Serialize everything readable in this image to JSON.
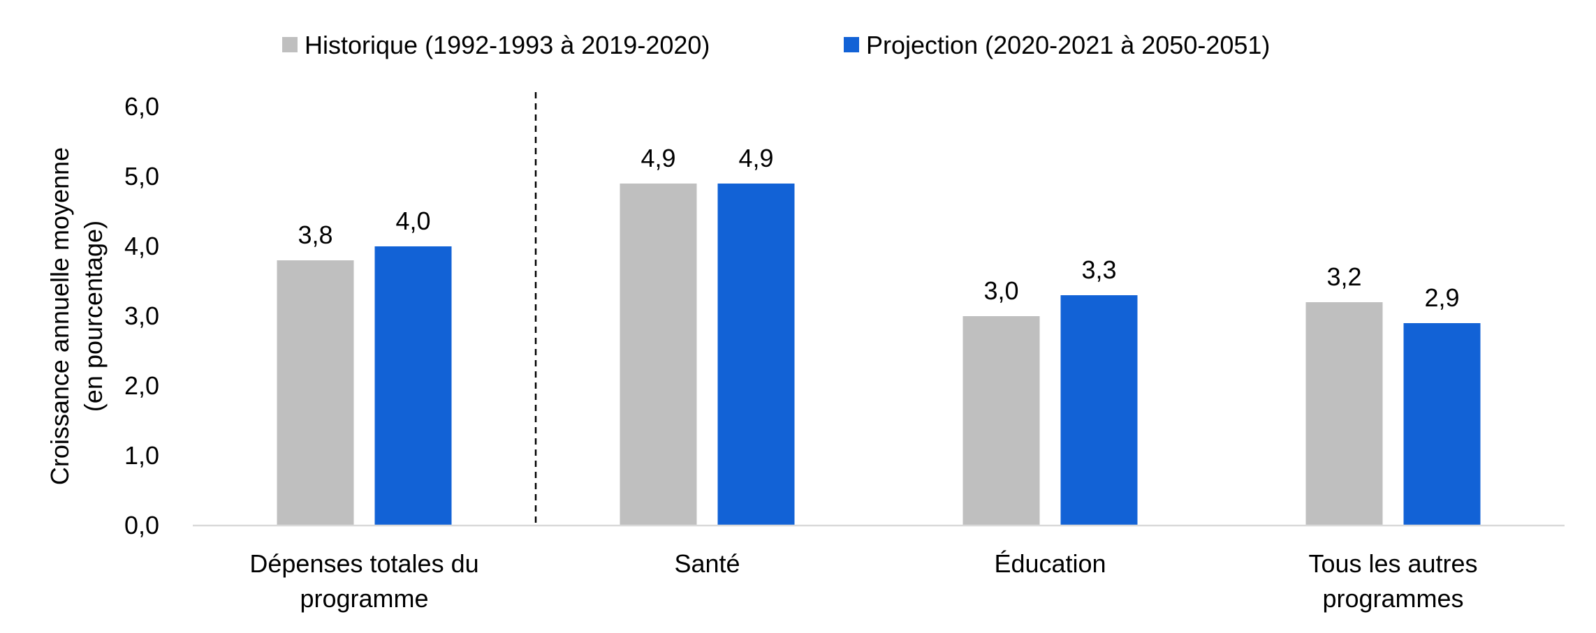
{
  "chart_data": {
    "type": "bar",
    "title": "",
    "xlabel": "",
    "ylabel_lines": [
      "Croissance annuelle moyenne",
      "(en pourcentage)"
    ],
    "ylim": [
      0,
      6
    ],
    "yticks": [
      0,
      1,
      2,
      3,
      4,
      5,
      6
    ],
    "ytick_labels": [
      "0,0",
      "1,0",
      "2,0",
      "3,0",
      "4,0",
      "5,0",
      "6,0"
    ],
    "categories": [
      [
        "Dépenses totales du",
        "programme"
      ],
      [
        "Santé"
      ],
      [
        "Éducation"
      ],
      [
        "Tous les autres",
        "programmes"
      ]
    ],
    "series": [
      {
        "name": "Historique (1992-1993 à 2019-2020)",
        "color": "#BFBFBF",
        "values": [
          3.8,
          4.9,
          3.0,
          3.2
        ],
        "labels": [
          "3,8",
          "4,9",
          "3,0",
          "3,2"
        ]
      },
      {
        "name": "Projection (2020-2021 à 2050-2051)",
        "color": "#1262D6",
        "values": [
          4.0,
          4.9,
          3.3,
          2.9
        ],
        "labels": [
          "4,0",
          "4,9",
          "3,3",
          "2,9"
        ]
      }
    ],
    "separator_after_category": 0,
    "separator_style": "dashed",
    "grid": false,
    "legend_position": "top"
  }
}
